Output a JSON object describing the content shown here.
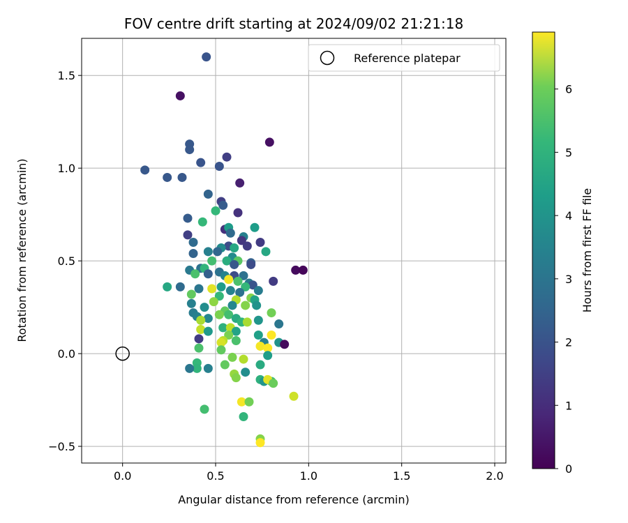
{
  "chart_data": {
    "type": "scatter",
    "title": "FOV centre drift starting at 2024/09/02 21:21:18",
    "xlabel": "Angular distance from reference (arcmin)",
    "ylabel": "Rotation from reference (arcmin)",
    "xlim": [
      -0.22,
      2.06
    ],
    "ylim": [
      -0.59,
      1.7
    ],
    "xticks": [
      0.0,
      0.5,
      1.0,
      1.5,
      2.0
    ],
    "xtick_labels": [
      "0.0",
      "0.5",
      "1.0",
      "1.5",
      "2.0"
    ],
    "yticks": [
      -0.5,
      0.0,
      0.5,
      1.0,
      1.5
    ],
    "ytick_labels": [
      "−0.5",
      "0.0",
      "0.5",
      "1.0",
      "1.5"
    ],
    "grid": true,
    "legend": {
      "placement": "top-right",
      "entries": [
        "Reference platepar"
      ]
    },
    "reference_point": {
      "x": 0.0,
      "y": 0.0
    },
    "colorbar": {
      "label": "Hours from first FF file",
      "range": [
        0,
        6.9
      ],
      "ticks": [
        0,
        1,
        2,
        3,
        4,
        5,
        6
      ],
      "tick_labels": [
        "0",
        "1",
        "2",
        "3",
        "4",
        "5",
        "6"
      ],
      "colormap": "viridis"
    },
    "points": [
      {
        "x": 0.45,
        "y": 1.6,
        "c": 1.8
      },
      {
        "x": 0.31,
        "y": 1.39,
        "c": 0.3
      },
      {
        "x": 0.79,
        "y": 1.14,
        "c": 0.3
      },
      {
        "x": 0.36,
        "y": 1.13,
        "c": 1.9
      },
      {
        "x": 0.36,
        "y": 1.1,
        "c": 1.9
      },
      {
        "x": 0.56,
        "y": 1.06,
        "c": 1.3
      },
      {
        "x": 0.42,
        "y": 1.03,
        "c": 1.8
      },
      {
        "x": 0.52,
        "y": 1.01,
        "c": 1.8
      },
      {
        "x": 0.12,
        "y": 0.99,
        "c": 1.9
      },
      {
        "x": 0.24,
        "y": 0.95,
        "c": 1.9
      },
      {
        "x": 0.32,
        "y": 0.95,
        "c": 1.9
      },
      {
        "x": 0.63,
        "y": 0.92,
        "c": 0.6
      },
      {
        "x": 0.46,
        "y": 0.86,
        "c": 2.2
      },
      {
        "x": 0.53,
        "y": 0.82,
        "c": 1.3
      },
      {
        "x": 0.54,
        "y": 0.8,
        "c": 2.0
      },
      {
        "x": 0.5,
        "y": 0.77,
        "c": 4.6
      },
      {
        "x": 0.62,
        "y": 0.76,
        "c": 1.0
      },
      {
        "x": 0.35,
        "y": 0.73,
        "c": 2.0
      },
      {
        "x": 0.43,
        "y": 0.71,
        "c": 4.6
      },
      {
        "x": 0.71,
        "y": 0.68,
        "c": 3.8
      },
      {
        "x": 0.55,
        "y": 0.67,
        "c": 1.0
      },
      {
        "x": 0.57,
        "y": 0.68,
        "c": 3.8
      },
      {
        "x": 0.58,
        "y": 0.65,
        "c": 2.4
      },
      {
        "x": 0.35,
        "y": 0.64,
        "c": 1.3
      },
      {
        "x": 0.65,
        "y": 0.63,
        "c": 3.0
      },
      {
        "x": 0.64,
        "y": 0.61,
        "c": 1.1
      },
      {
        "x": 0.38,
        "y": 0.6,
        "c": 2.4
      },
      {
        "x": 0.74,
        "y": 0.6,
        "c": 1.2
      },
      {
        "x": 0.67,
        "y": 0.58,
        "c": 1.2
      },
      {
        "x": 0.57,
        "y": 0.58,
        "c": 1.6
      },
      {
        "x": 0.53,
        "y": 0.57,
        "c": 3.3
      },
      {
        "x": 0.6,
        "y": 0.57,
        "c": 4.1
      },
      {
        "x": 0.77,
        "y": 0.55,
        "c": 4.1
      },
      {
        "x": 0.46,
        "y": 0.55,
        "c": 3.0
      },
      {
        "x": 0.51,
        "y": 0.55,
        "c": 2.3
      },
      {
        "x": 0.38,
        "y": 0.54,
        "c": 2.2
      },
      {
        "x": 0.59,
        "y": 0.52,
        "c": 3.3
      },
      {
        "x": 0.56,
        "y": 0.5,
        "c": 4.3
      },
      {
        "x": 0.48,
        "y": 0.5,
        "c": 4.8
      },
      {
        "x": 0.62,
        "y": 0.5,
        "c": 5.1
      },
      {
        "x": 0.6,
        "y": 0.48,
        "c": 1.9
      },
      {
        "x": 0.69,
        "y": 0.49,
        "c": 2.1
      },
      {
        "x": 0.69,
        "y": 0.48,
        "c": 1.6
      },
      {
        "x": 0.42,
        "y": 0.46,
        "c": 2.6
      },
      {
        "x": 0.44,
        "y": 0.46,
        "c": 4.5
      },
      {
        "x": 0.36,
        "y": 0.45,
        "c": 2.8
      },
      {
        "x": 0.93,
        "y": 0.45,
        "c": 0.2
      },
      {
        "x": 0.97,
        "y": 0.45,
        "c": 0.1
      },
      {
        "x": 0.52,
        "y": 0.44,
        "c": 2.6
      },
      {
        "x": 0.46,
        "y": 0.43,
        "c": 2.1
      },
      {
        "x": 0.39,
        "y": 0.43,
        "c": 4.9
      },
      {
        "x": 0.55,
        "y": 0.42,
        "c": 3.1
      },
      {
        "x": 0.6,
        "y": 0.42,
        "c": 1.6
      },
      {
        "x": 0.65,
        "y": 0.42,
        "c": 2.6
      },
      {
        "x": 0.57,
        "y": 0.4,
        "c": 6.8
      },
      {
        "x": 0.62,
        "y": 0.39,
        "c": 4.9
      },
      {
        "x": 0.81,
        "y": 0.39,
        "c": 1.2
      },
      {
        "x": 0.68,
        "y": 0.38,
        "c": 2.8
      },
      {
        "x": 0.7,
        "y": 0.37,
        "c": 1.8
      },
      {
        "x": 0.24,
        "y": 0.36,
        "c": 4.1
      },
      {
        "x": 0.31,
        "y": 0.36,
        "c": 2.4
      },
      {
        "x": 0.53,
        "y": 0.36,
        "c": 3.8
      },
      {
        "x": 0.66,
        "y": 0.36,
        "c": 4.6
      },
      {
        "x": 0.41,
        "y": 0.35,
        "c": 2.7
      },
      {
        "x": 0.48,
        "y": 0.35,
        "c": 6.6
      },
      {
        "x": 0.58,
        "y": 0.34,
        "c": 3.1
      },
      {
        "x": 0.73,
        "y": 0.34,
        "c": 2.9
      },
      {
        "x": 0.63,
        "y": 0.33,
        "c": 2.6
      },
      {
        "x": 0.37,
        "y": 0.32,
        "c": 5.2
      },
      {
        "x": 0.52,
        "y": 0.31,
        "c": 4.6
      },
      {
        "x": 0.69,
        "y": 0.3,
        "c": 5.6
      },
      {
        "x": 0.61,
        "y": 0.29,
        "c": 6.1
      },
      {
        "x": 0.71,
        "y": 0.29,
        "c": 4.0
      },
      {
        "x": 0.49,
        "y": 0.28,
        "c": 5.7
      },
      {
        "x": 0.37,
        "y": 0.27,
        "c": 3.0
      },
      {
        "x": 0.59,
        "y": 0.26,
        "c": 3.2
      },
      {
        "x": 0.66,
        "y": 0.26,
        "c": 5.6
      },
      {
        "x": 0.72,
        "y": 0.26,
        "c": 3.5
      },
      {
        "x": 0.44,
        "y": 0.25,
        "c": 3.4
      },
      {
        "x": 0.55,
        "y": 0.23,
        "c": 5.2
      },
      {
        "x": 0.38,
        "y": 0.22,
        "c": 2.9
      },
      {
        "x": 0.8,
        "y": 0.22,
        "c": 5.4
      },
      {
        "x": 0.52,
        "y": 0.21,
        "c": 5.5
      },
      {
        "x": 0.57,
        "y": 0.21,
        "c": 4.8
      },
      {
        "x": 0.4,
        "y": 0.2,
        "c": 3.0
      },
      {
        "x": 0.61,
        "y": 0.19,
        "c": 4.2
      },
      {
        "x": 0.46,
        "y": 0.19,
        "c": 3.2
      },
      {
        "x": 0.42,
        "y": 0.18,
        "c": 6.0
      },
      {
        "x": 0.73,
        "y": 0.18,
        "c": 3.6
      },
      {
        "x": 0.64,
        "y": 0.17,
        "c": 4.5
      },
      {
        "x": 0.67,
        "y": 0.17,
        "c": 6.0
      },
      {
        "x": 0.84,
        "y": 0.16,
        "c": 2.7
      },
      {
        "x": 0.54,
        "y": 0.14,
        "c": 4.4
      },
      {
        "x": 0.58,
        "y": 0.14,
        "c": 6.2
      },
      {
        "x": 0.42,
        "y": 0.13,
        "c": 6.3
      },
      {
        "x": 0.61,
        "y": 0.12,
        "c": 4.0
      },
      {
        "x": 0.46,
        "y": 0.12,
        "c": 3.7
      },
      {
        "x": 0.57,
        "y": 0.1,
        "c": 5.5
      },
      {
        "x": 0.73,
        "y": 0.1,
        "c": 3.9
      },
      {
        "x": 0.8,
        "y": 0.1,
        "c": 6.9
      },
      {
        "x": 0.41,
        "y": 0.08,
        "c": 1.2
      },
      {
        "x": 0.54,
        "y": 0.07,
        "c": 6.2
      },
      {
        "x": 0.61,
        "y": 0.07,
        "c": 4.9
      },
      {
        "x": 0.53,
        "y": 0.06,
        "c": 6.5
      },
      {
        "x": 0.76,
        "y": 0.06,
        "c": 3.0
      },
      {
        "x": 0.84,
        "y": 0.06,
        "c": 3.5
      },
      {
        "x": 0.87,
        "y": 0.05,
        "c": 0.2
      },
      {
        "x": 0.74,
        "y": 0.04,
        "c": 6.8
      },
      {
        "x": 0.78,
        "y": 0.03,
        "c": 6.9
      },
      {
        "x": 0.41,
        "y": 0.03,
        "c": 4.9
      },
      {
        "x": 0.53,
        "y": 0.02,
        "c": 5.2
      },
      {
        "x": 0.78,
        "y": -0.01,
        "c": 3.8
      },
      {
        "x": 0.59,
        "y": -0.02,
        "c": 5.5
      },
      {
        "x": 0.65,
        "y": -0.03,
        "c": 6.1
      },
      {
        "x": 0.55,
        "y": -0.06,
        "c": 5.2
      },
      {
        "x": 0.4,
        "y": -0.05,
        "c": 4.6
      },
      {
        "x": 0.74,
        "y": -0.06,
        "c": 4.2
      },
      {
        "x": 0.4,
        "y": -0.08,
        "c": 4.5
      },
      {
        "x": 0.36,
        "y": -0.08,
        "c": 2.7
      },
      {
        "x": 0.46,
        "y": -0.08,
        "c": 3.0
      },
      {
        "x": 0.66,
        "y": -0.1,
        "c": 3.4
      },
      {
        "x": 0.6,
        "y": -0.11,
        "c": 5.8
      },
      {
        "x": 0.61,
        "y": -0.13,
        "c": 5.6
      },
      {
        "x": 0.74,
        "y": -0.14,
        "c": 4.4
      },
      {
        "x": 0.76,
        "y": -0.15,
        "c": 3.6
      },
      {
        "x": 0.8,
        "y": -0.15,
        "c": 4.7
      },
      {
        "x": 0.78,
        "y": -0.14,
        "c": 6.6
      },
      {
        "x": 0.81,
        "y": -0.16,
        "c": 5.3
      },
      {
        "x": 0.92,
        "y": -0.23,
        "c": 6.4
      },
      {
        "x": 0.64,
        "y": -0.26,
        "c": 6.8
      },
      {
        "x": 0.68,
        "y": -0.26,
        "c": 5.4
      },
      {
        "x": 0.44,
        "y": -0.3,
        "c": 4.8
      },
      {
        "x": 0.65,
        "y": -0.34,
        "c": 4.5
      },
      {
        "x": 0.74,
        "y": -0.46,
        "c": 5.6
      },
      {
        "x": 0.74,
        "y": -0.48,
        "c": 6.9
      }
    ]
  }
}
